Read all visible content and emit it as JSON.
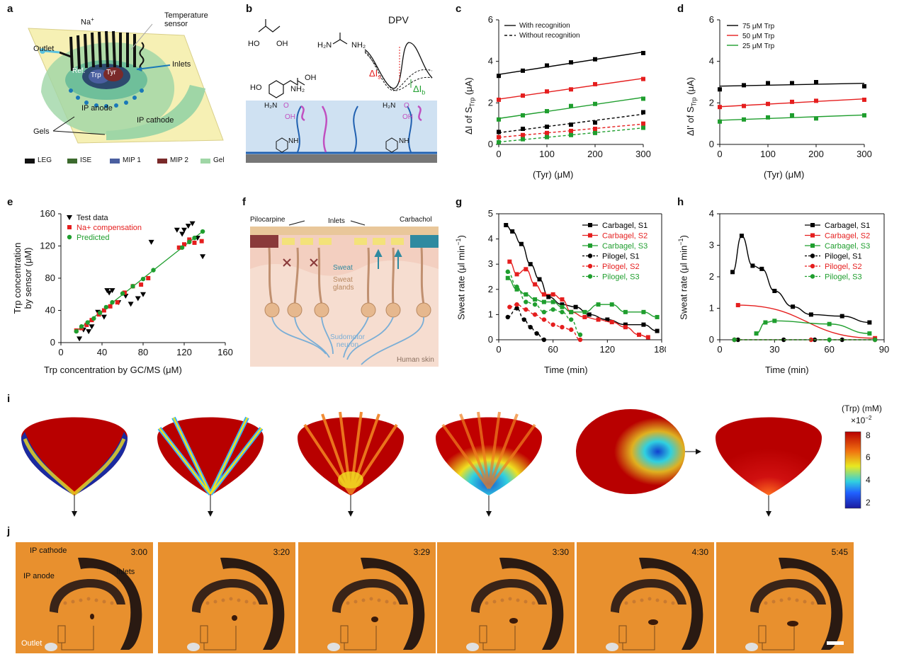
{
  "panels": {
    "a": {
      "label": "a",
      "na": "Na",
      "na_sup": "+",
      "temperature_sensor": "Temperature sensor",
      "outlet": "Outlet",
      "inlets": "Inlets",
      "ref": "Ref.",
      "trp": "Trp",
      "tyr": "Tyr",
      "ip_anode": "IP anode",
      "ip_cathode": "IP cathode",
      "gels": "Gels",
      "legend": [
        {
          "label": "LEG",
          "color": "#111111"
        },
        {
          "label": "ISE",
          "color": "#3c6a2e"
        },
        {
          "label": "MIP 1",
          "color": "#4a5fa0"
        },
        {
          "label": "MIP 2",
          "color": "#7a2a2a"
        },
        {
          "label": "Gel",
          "color": "#9fd6a6"
        }
      ]
    },
    "b": {
      "label": "b",
      "dpv": "DPV",
      "delta_is": "ΔI",
      "sub_s": "s",
      "delta_ib": "ΔI",
      "sub_b": "b",
      "h2n": "H₂N",
      "nh2": "NH₂",
      "oh": "OH",
      "ho": "HO",
      "o": "O",
      "nh": "NH"
    },
    "c": {
      "label": "c",
      "legend_solid": "With recognition",
      "legend_dashed": "Without recognition",
      "ylabel": "ΔI of S",
      "ysub": "Trp",
      "yunit": " (μA)",
      "xlabel": "(Tyr) (μM)"
    },
    "d": {
      "label": "d",
      "ylabel": "ΔI' of S",
      "ysub": "Trp",
      "yunit": " (μA)",
      "xlabel": "(Tyr) (μM)"
    },
    "e": {
      "label": "e",
      "ylabel1": "Trp concentration",
      "ylabel2": "by sensor (μM)",
      "xlabel": "Trp concentration by GC/MS (μM)"
    },
    "f": {
      "label": "f",
      "pilocarpine": "Pilocarpine",
      "carbachol": "Carbachol",
      "inlets": "Inlets",
      "sweat": "Sweat",
      "sweat_glands1": "Sweat",
      "sweat_glands2": "glands",
      "sudomotor1": "Sudomotor",
      "sudomotor2": "neuron",
      "human_skin": "Human skin"
    },
    "g": {
      "label": "g",
      "ylabel": "Sweat rate (μl min",
      "ysup": "−1",
      "yclose": ")",
      "xlabel": "Time (min)"
    },
    "h": {
      "label": "h",
      "ylabel": "Sweat rate (μl min",
      "ysup": "−1",
      "yclose": ")",
      "xlabel": "Time (min)"
    },
    "i": {
      "label": "i",
      "cb_title": "(Trp) (mM)",
      "cb_scale": "×10",
      "cb_scale_sup": "−2",
      "cb_ticks": [
        "8",
        "6",
        "4",
        "2"
      ]
    },
    "j": {
      "label": "j",
      "times": [
        "3:00",
        "3:20",
        "3:29",
        "3:30",
        "4:30",
        "5:45"
      ],
      "ip_cathode": "IP cathode",
      "ip_anode": "IP anode",
      "inlets": "Inlets",
      "outlet": "Outlet"
    }
  },
  "chart_data": [
    {
      "panel": "c",
      "type": "line",
      "xlabel": "(Tyr) (μM)",
      "ylabel": "ΔI of S_Trp (μA)",
      "x": [
        0,
        50,
        100,
        150,
        200,
        300
      ],
      "xlim": [
        0,
        300
      ],
      "ylim": [
        0,
        6
      ],
      "xticks": [
        0,
        100,
        200,
        300
      ],
      "yticks": [
        0,
        2,
        4,
        6
      ],
      "series": [
        {
          "name": "With recognition",
          "color": "#000000",
          "dashed": false,
          "values": [
            3.3,
            3.55,
            3.8,
            3.95,
            4.1,
            4.4
          ]
        },
        {
          "color": "#e51e1e",
          "dashed": false,
          "values": [
            2.15,
            2.35,
            2.55,
            2.65,
            2.9,
            3.15
          ]
        },
        {
          "color": "#1f9e2e",
          "dashed": false,
          "values": [
            1.2,
            1.4,
            1.6,
            1.85,
            1.95,
            2.2
          ]
        },
        {
          "name": "Without recognition",
          "color": "#000000",
          "dashed": true,
          "values": [
            0.6,
            0.75,
            0.85,
            0.95,
            1.05,
            1.55
          ]
        },
        {
          "color": "#e51e1e",
          "dashed": true,
          "values": [
            0.35,
            0.45,
            0.55,
            0.65,
            0.75,
            1.0
          ]
        },
        {
          "color": "#1f9e2e",
          "dashed": true,
          "values": [
            0.1,
            0.25,
            0.35,
            0.45,
            0.55,
            0.8
          ]
        }
      ]
    },
    {
      "panel": "d",
      "type": "line",
      "xlabel": "(Tyr) (μM)",
      "ylabel": "ΔI' of S_Trp (μA)",
      "x": [
        0,
        50,
        100,
        150,
        200,
        300
      ],
      "xlim": [
        0,
        300
      ],
      "ylim": [
        0,
        6
      ],
      "xticks": [
        0,
        100,
        200,
        300
      ],
      "yticks": [
        0,
        2,
        4,
        6
      ],
      "series": [
        {
          "name": "75 μM Trp",
          "color": "#000000",
          "values": [
            2.65,
            2.85,
            2.95,
            2.95,
            3.0,
            2.8
          ]
        },
        {
          "name": "50 μM Trp",
          "color": "#e51e1e",
          "values": [
            1.8,
            1.85,
            1.95,
            2.05,
            2.1,
            2.15
          ]
        },
        {
          "name": "25 μM Trp",
          "color": "#1f9e2e",
          "values": [
            1.1,
            1.2,
            1.3,
            1.4,
            1.25,
            1.4
          ]
        }
      ]
    },
    {
      "panel": "e",
      "type": "scatter",
      "xlabel": "Trp concentration by GC/MS (μM)",
      "ylabel": "Trp concentration by sensor (μM)",
      "xlim": [
        0,
        160
      ],
      "ylim": [
        0,
        160
      ],
      "xticks": [
        0,
        40,
        80,
        120,
        160
      ],
      "yticks": [
        0,
        40,
        80,
        120,
        160
      ],
      "series": [
        {
          "name": "Test data",
          "color": "#000000",
          "marker": "triangle-down",
          "x": [
            18,
            22,
            27,
            30,
            36,
            42,
            45,
            47,
            50,
            56,
            63,
            68,
            75,
            80,
            88,
            113,
            118,
            120,
            124,
            128,
            133,
            138
          ],
          "y": [
            5,
            16,
            14,
            20,
            38,
            32,
            65,
            62,
            65,
            50,
            58,
            48,
            55,
            60,
            125,
            140,
            135,
            140,
            145,
            148,
            130,
            107
          ]
        },
        {
          "name": "Na+ compensation",
          "color": "#e51e1e",
          "marker": "square",
          "x": [
            15,
            20,
            25,
            30,
            37,
            42,
            48,
            55,
            62,
            70,
            78,
            85,
            115,
            120,
            125,
            130,
            137
          ],
          "y": [
            15,
            18,
            22,
            28,
            35,
            40,
            45,
            50,
            62,
            70,
            72,
            80,
            118,
            122,
            128,
            124,
            126
          ]
        },
        {
          "name": "Predicted",
          "color": "#1f9e2e",
          "marker": "circle",
          "x": [
            15,
            20,
            26,
            32,
            38,
            44,
            50,
            60,
            70,
            80,
            90,
            118,
            125,
            130,
            138
          ],
          "y": [
            14,
            20,
            25,
            30,
            37,
            44,
            50,
            61,
            70,
            79,
            90,
            118,
            125,
            130,
            138
          ]
        }
      ]
    },
    {
      "panel": "g",
      "type": "line",
      "xlabel": "Time (min)",
      "ylabel": "Sweat rate (μl min−1)",
      "xlim": [
        0,
        180
      ],
      "ylim": [
        0,
        5
      ],
      "xticks": [
        0,
        60,
        120,
        180
      ],
      "yticks": [
        0,
        1,
        2,
        3,
        4,
        5
      ],
      "series": [
        {
          "name": "Carbagel, S1",
          "color": "#000000",
          "dashed": false,
          "x": [
            8,
            15,
            25,
            35,
            45,
            55,
            70,
            85,
            100,
            120,
            140,
            160,
            175
          ],
          "y": [
            4.55,
            4.3,
            3.8,
            3.0,
            2.4,
            1.7,
            1.4,
            1.3,
            1.0,
            0.8,
            0.6,
            0.6,
            0.35
          ]
        },
        {
          "name": "Carbagel, S2",
          "color": "#e51e1e",
          "dashed": false,
          "x": [
            12,
            20,
            30,
            40,
            50,
            60,
            70,
            80,
            95,
            110,
            125,
            140,
            155,
            165
          ],
          "y": [
            3.1,
            2.6,
            2.8,
            2.2,
            1.8,
            1.8,
            1.6,
            1.1,
            0.9,
            0.8,
            0.7,
            0.5,
            0.2,
            0.1
          ]
        },
        {
          "name": "Carbagel, S3",
          "color": "#1f9e2e",
          "dashed": false,
          "x": [
            10,
            20,
            30,
            40,
            50,
            60,
            70,
            80,
            95,
            110,
            125,
            140,
            160,
            175
          ],
          "y": [
            2.45,
            2.0,
            1.8,
            1.6,
            1.5,
            1.5,
            1.3,
            1.1,
            1.1,
            1.4,
            1.4,
            1.1,
            1.1,
            0.9
          ]
        },
        {
          "name": "Pilogel, S1",
          "color": "#000000",
          "dashed": true,
          "x": [
            10,
            20,
            28,
            35,
            42,
            50
          ],
          "y": [
            0.9,
            1.25,
            0.8,
            0.5,
            0.25,
            0
          ]
        },
        {
          "name": "Pilogel, S2",
          "color": "#e51e1e",
          "dashed": true,
          "x": [
            12,
            20,
            30,
            40,
            50,
            60,
            70,
            80,
            90
          ],
          "y": [
            1.3,
            1.4,
            1.2,
            1.0,
            0.8,
            0.6,
            0.5,
            0.4,
            0
          ]
        },
        {
          "name": "Pilogel, S3",
          "color": "#1f9e2e",
          "dashed": true,
          "x": [
            10,
            20,
            30,
            40,
            50,
            60,
            70,
            80,
            90
          ],
          "y": [
            2.7,
            2.1,
            1.5,
            1.4,
            1.1,
            1.2,
            1.1,
            0.8,
            0.2
          ]
        }
      ]
    },
    {
      "panel": "h",
      "type": "line",
      "xlabel": "Time (min)",
      "ylabel": "Sweat rate (μl min−1)",
      "xlim": [
        0,
        90
      ],
      "ylim": [
        0,
        4
      ],
      "xticks": [
        0,
        30,
        60,
        90
      ],
      "yticks": [
        0,
        1,
        2,
        3,
        4
      ],
      "series": [
        {
          "name": "Carbagel, S1",
          "color": "#000000",
          "dashed": false,
          "x": [
            7,
            12,
            18,
            23,
            30,
            40,
            50,
            67,
            82
          ],
          "y": [
            2.15,
            3.3,
            2.35,
            2.25,
            1.55,
            1.05,
            0.8,
            0.75,
            0.55
          ]
        },
        {
          "name": "Carbagel, S2",
          "color": "#e51e1e",
          "dashed": false,
          "x": [
            10,
            85
          ],
          "y": [
            1.1,
            0.05
          ]
        },
        {
          "name": "Carbagel, S3",
          "color": "#1f9e2e",
          "dashed": false,
          "x": [
            20,
            25,
            30,
            60,
            82
          ],
          "y": [
            0.2,
            0.55,
            0.6,
            0.5,
            0.2
          ]
        },
        {
          "name": "Pilogel, S1",
          "color": "#000000",
          "dashed": true,
          "x": [
            8,
            10,
            35,
            52,
            67,
            85
          ],
          "y": [
            0,
            0,
            0,
            0,
            0,
            0
          ]
        },
        {
          "name": "Pilogel, S2",
          "color": "#e51e1e",
          "dashed": true,
          "x": [
            8,
            50,
            85
          ],
          "y": [
            0,
            0,
            0
          ]
        },
        {
          "name": "Pilogel, S3",
          "color": "#1f9e2e",
          "dashed": true,
          "x": [
            8,
            60,
            85
          ],
          "y": [
            0,
            0,
            0
          ]
        }
      ]
    }
  ]
}
